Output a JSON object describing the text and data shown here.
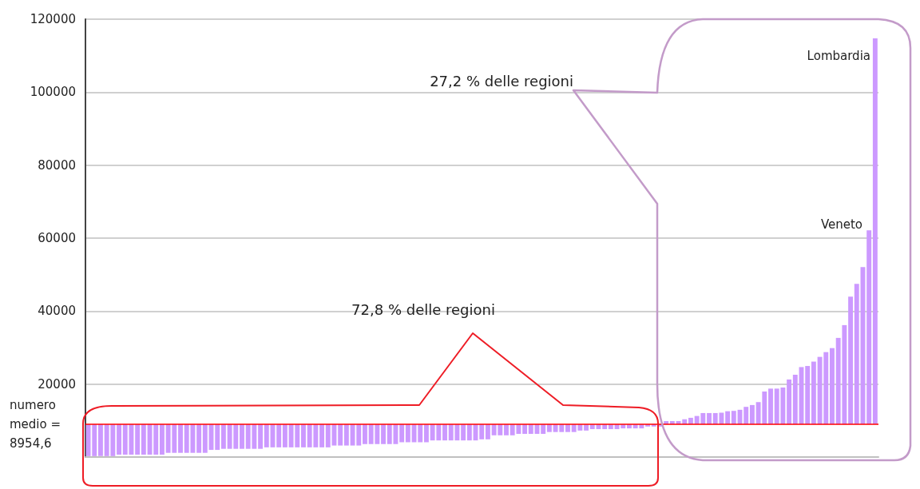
{
  "chart_data": {
    "type": "bar",
    "categories": [
      null,
      null,
      null,
      null,
      null,
      null,
      null,
      null,
      null,
      null,
      null,
      null,
      null,
      null,
      null,
      null,
      null,
      null,
      null,
      null,
      null,
      null,
      null,
      null,
      null,
      null,
      null,
      null,
      null,
      null,
      null,
      null,
      null,
      null,
      null,
      null,
      null,
      null,
      null,
      null,
      null,
      null,
      null,
      null,
      null,
      null,
      null,
      null,
      null,
      null,
      null,
      null,
      null,
      null,
      null,
      null,
      null,
      null,
      null,
      null,
      null,
      null,
      null,
      null,
      null,
      null,
      null,
      null,
      null,
      null,
      null,
      null,
      null,
      null,
      null,
      null,
      null,
      null,
      null,
      null,
      null,
      null,
      null,
      null,
      null,
      null,
      null,
      null,
      null,
      null,
      null,
      null,
      null,
      null,
      null,
      null,
      null,
      null,
      null,
      null,
      null,
      null,
      null,
      null,
      null,
      null,
      null,
      null,
      null,
      null,
      null,
      null,
      null,
      null,
      null,
      null,
      null,
      null,
      null,
      null,
      null,
      null,
      null,
      null,
      null,
      null,
      null,
      null,
      null
    ],
    "values": [
      -8700,
      -8700,
      -8700,
      -8700,
      -8700,
      -8300,
      -8300,
      -8300,
      -8300,
      -8300,
      -8300,
      -8300,
      -8300,
      -7800,
      -7800,
      -7800,
      -7800,
      -7800,
      -7800,
      -7800,
      -7000,
      -7000,
      -6700,
      -6700,
      -6700,
      -6700,
      -6700,
      -6700,
      -6700,
      -6300,
      -6300,
      -6300,
      -6300,
      -6300,
      -6300,
      -6300,
      -6300,
      -6300,
      -6300,
      -6300,
      -5800,
      -5800,
      -5800,
      -5800,
      -5800,
      -5400,
      -5400,
      -5400,
      -5400,
      -5400,
      -5400,
      -4900,
      -4900,
      -4900,
      -4900,
      -4900,
      -4400,
      -4400,
      -4400,
      -4400,
      -4400,
      -4400,
      -4400,
      -4400,
      -4100,
      -4100,
      -3000,
      -3000,
      -3000,
      -3000,
      -2600,
      -2600,
      -2600,
      -2600,
      -2600,
      -2100,
      -2100,
      -2100,
      -2100,
      -2100,
      -1700,
      -1700,
      -1300,
      -1300,
      -1300,
      -1300,
      -1300,
      -1100,
      -1100,
      -1100,
      -1100,
      -600,
      -600,
      -600,
      900,
      900,
      900,
      1400,
      1800,
      2300,
      3100,
      3100,
      3100,
      3200,
      3600,
      3700,
      4000,
      4800,
      5300,
      6100,
      9000,
      9800,
      9800,
      10100,
      12300,
      13600,
      15700,
      16000,
      17200,
      18500,
      19800,
      20900,
      23700,
      27200,
      35000,
      38500,
      43100,
      53200,
      105800
    ],
    "base": [
      8954.6,
      8954.6,
      8954.6,
      8954.6,
      8954.6,
      8954.6,
      8954.6,
      8954.6,
      8954.6,
      8954.6,
      8954.6,
      8954.6,
      8954.6,
      8954.6,
      8954.6,
      8954.6,
      8954.6,
      8954.6,
      8954.6,
      8954.6,
      8954.6,
      8954.6,
      8954.6,
      8954.6,
      8954.6,
      8954.6,
      8954.6,
      8954.6,
      8954.6,
      8954.6,
      8954.6,
      8954.6,
      8954.6,
      8954.6,
      8954.6,
      8954.6,
      8954.6,
      8954.6,
      8954.6,
      8954.6,
      8954.6,
      8954.6,
      8954.6,
      8954.6,
      8954.6,
      8954.6,
      8954.6,
      8954.6,
      8954.6,
      8954.6,
      8954.6,
      8954.6,
      8954.6,
      8954.6,
      8954.6,
      8954.6,
      8954.6,
      8954.6,
      8954.6,
      8954.6,
      8954.6,
      8954.6,
      8954.6,
      8954.6,
      8954.6,
      8954.6,
      8954.6,
      8954.6,
      8954.6,
      8954.6,
      8954.6,
      8954.6,
      8954.6,
      8954.6,
      8954.6,
      8954.6,
      8954.6,
      8954.6,
      8954.6,
      8954.6,
      8954.6,
      8954.6,
      8954.6,
      8954.6,
      8954.6,
      8954.6,
      8954.6,
      8954.6,
      8954.6,
      8954.6,
      8954.6,
      8954.6,
      8954.6,
      8954.6,
      8954.6,
      8954.6,
      8954.6,
      8954.6,
      8954.6,
      8954.6,
      8954.6,
      8954.6,
      8954.6,
      8954.6,
      8954.6,
      8954.6,
      8954.6,
      8954.6,
      8954.6,
      8954.6,
      8954.6,
      8954.6,
      8954.6,
      8954.6,
      8954.6,
      8954.6,
      8954.6,
      8954.6,
      8954.6,
      8954.6,
      8954.6,
      8954.6,
      8954.6,
      8954.6,
      8954.6,
      8954.6,
      8954.6,
      8954.6,
      8954.6
    ],
    "color": "#cc99ff",
    "ylim": [
      0,
      120000
    ],
    "yticks": [
      20000,
      40000,
      60000,
      80000,
      100000,
      120000
    ],
    "grid": "y",
    "ref_lines": [
      {
        "axis": "y",
        "value": 8954.6,
        "label": "numero medio = 8954,6",
        "color": "#ff0000"
      }
    ],
    "annotations": [
      "27,2 % delle regioni",
      "72,8 % delle regioni",
      "Lombardia",
      "Veneto"
    ]
  }
}
